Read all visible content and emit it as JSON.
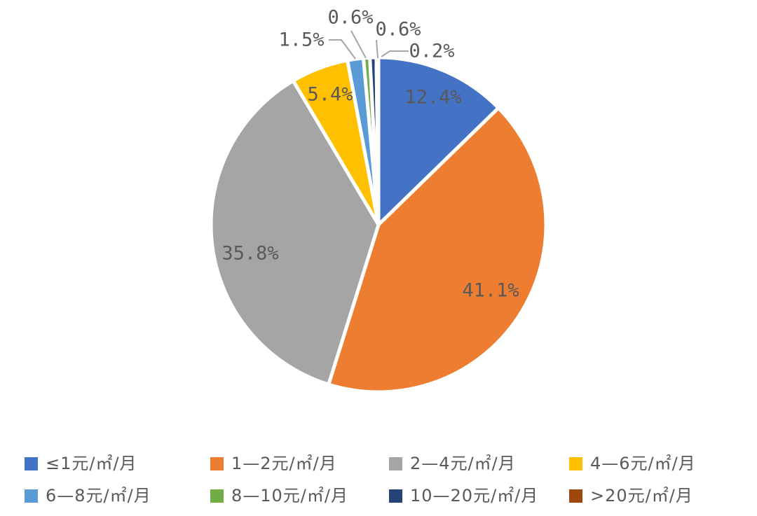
{
  "figure": {
    "background_color": "#FFFFFF",
    "text_color": "#595959"
  },
  "chart_data": {
    "type": "pie",
    "title": "",
    "value_unit": "percent",
    "start_angle": "12-oclock-clockwise",
    "legend_position": "bottom",
    "legend_rows": 2,
    "legend_columns": 4,
    "slice_border_color": "#FFFFFF",
    "data_label_color": "#595959",
    "leader_line_color": "#A6A6A6",
    "slices": [
      {
        "label": "≤1元/㎡/月",
        "value": 12.4,
        "display": "12.4%",
        "color": "#4472C4",
        "label_placement": "inside"
      },
      {
        "label": "1—2元/㎡/月",
        "value": 41.1,
        "display": "41.1%",
        "color": "#ED7D31",
        "label_placement": "inside"
      },
      {
        "label": "2—4元/㎡/月",
        "value": 35.8,
        "display": "35.8%",
        "color": "#A5A5A5",
        "label_placement": "inside"
      },
      {
        "label": "4—6元/㎡/月",
        "value": 5.4,
        "display": "5.4%",
        "color": "#FFC000",
        "label_placement": "inside"
      },
      {
        "label": "6—8元/㎡/月",
        "value": 1.5,
        "display": "1.5%",
        "color": "#5B9BD5",
        "label_placement": "outside-leader"
      },
      {
        "label": "8—10元/㎡/月",
        "value": 0.6,
        "display": "0.6%",
        "color": "#70AD47",
        "label_placement": "outside-leader"
      },
      {
        "label": "10—20元/㎡/月",
        "value": 0.6,
        "display": "0.6%",
        "color": "#264478",
        "label_placement": "outside-leader"
      },
      {
        "label": ">20元/㎡/月",
        "value": 0.2,
        "display": "0.2%",
        "color": "#9E480E",
        "label_placement": "outside-leader"
      }
    ]
  }
}
